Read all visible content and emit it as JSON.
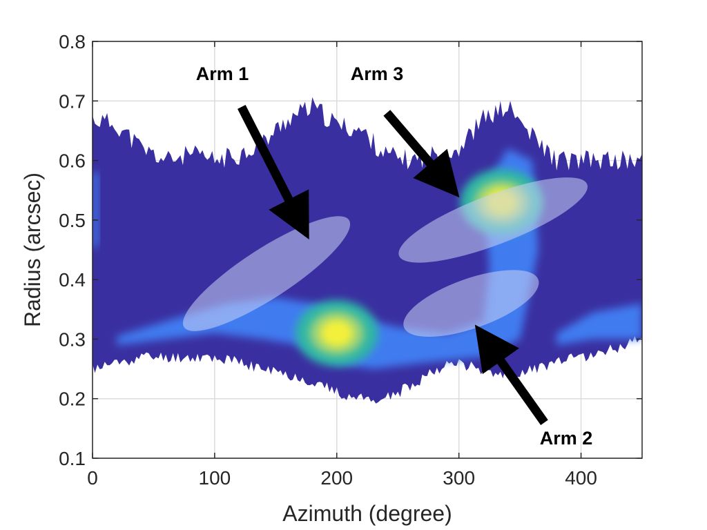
{
  "chart_data": {
    "type": "heatmap",
    "title": "",
    "xlabel": "Azimuth (degree)",
    "ylabel": "Radius (arcsec)",
    "xlim": [
      0,
      450
    ],
    "ylim": [
      0.1,
      0.8
    ],
    "xticks": [
      0,
      100,
      200,
      300,
      400
    ],
    "yticks": [
      0.1,
      0.2,
      0.3,
      0.4,
      0.5,
      0.6,
      0.7,
      0.8
    ],
    "grid": true,
    "colors": {
      "background_level": "#3a2fa0",
      "low": "#3f7cf0",
      "mid": "#2fb5a6",
      "high_mid": "#9ad27a",
      "peak": "#f3f03a",
      "highlight": "#c8d2f5"
    },
    "emission_envelope": {
      "azimuth": [
        0,
        20,
        40,
        60,
        80,
        100,
        120,
        140,
        160,
        180,
        200,
        220,
        240,
        260,
        280,
        300,
        320,
        340,
        360,
        380,
        400,
        420,
        450
      ],
      "radius_upper": [
        0.67,
        0.66,
        0.62,
        0.6,
        0.61,
        0.6,
        0.61,
        0.63,
        0.67,
        0.69,
        0.66,
        0.65,
        0.61,
        0.6,
        0.61,
        0.62,
        0.67,
        0.69,
        0.64,
        0.6,
        0.6,
        0.6,
        0.6
      ],
      "radius_lower": [
        0.25,
        0.26,
        0.27,
        0.27,
        0.27,
        0.27,
        0.26,
        0.25,
        0.24,
        0.23,
        0.21,
        0.2,
        0.2,
        0.22,
        0.25,
        0.26,
        0.25,
        0.24,
        0.25,
        0.26,
        0.27,
        0.28,
        0.3
      ]
    },
    "peaks": [
      {
        "azimuth": 200,
        "radius": 0.31,
        "level": "peak"
      },
      {
        "azimuth": 335,
        "radius": 0.53,
        "level": "peak"
      }
    ],
    "annotations": [
      {
        "label": "Arm 1",
        "arrow_tail": [
          122,
          0.69
        ],
        "arrow_head": [
          168,
          0.505
        ],
        "ellipse_center": [
          140,
          0.41
        ],
        "ellipse_endpoints": [
          [
            75,
            0.32
          ],
          [
            210,
            0.5
          ]
        ]
      },
      {
        "label": "Arm 3",
        "arrow_tail": [
          241,
          0.68
        ],
        "arrow_head": [
          287,
          0.57
        ],
        "ellipse_center": [
          329,
          0.5
        ],
        "ellipse_endpoints": [
          [
            251,
            0.44
          ],
          [
            405,
            0.56
          ]
        ]
      },
      {
        "label": "Arm 2",
        "arrow_tail": [
          370,
          0.16
        ],
        "arrow_head": [
          325,
          0.29
        ],
        "ellipse_center": [
          310,
          0.36
        ],
        "ellipse_endpoints": [
          [
            255,
            0.32
          ],
          [
            365,
            0.4
          ]
        ]
      }
    ]
  }
}
